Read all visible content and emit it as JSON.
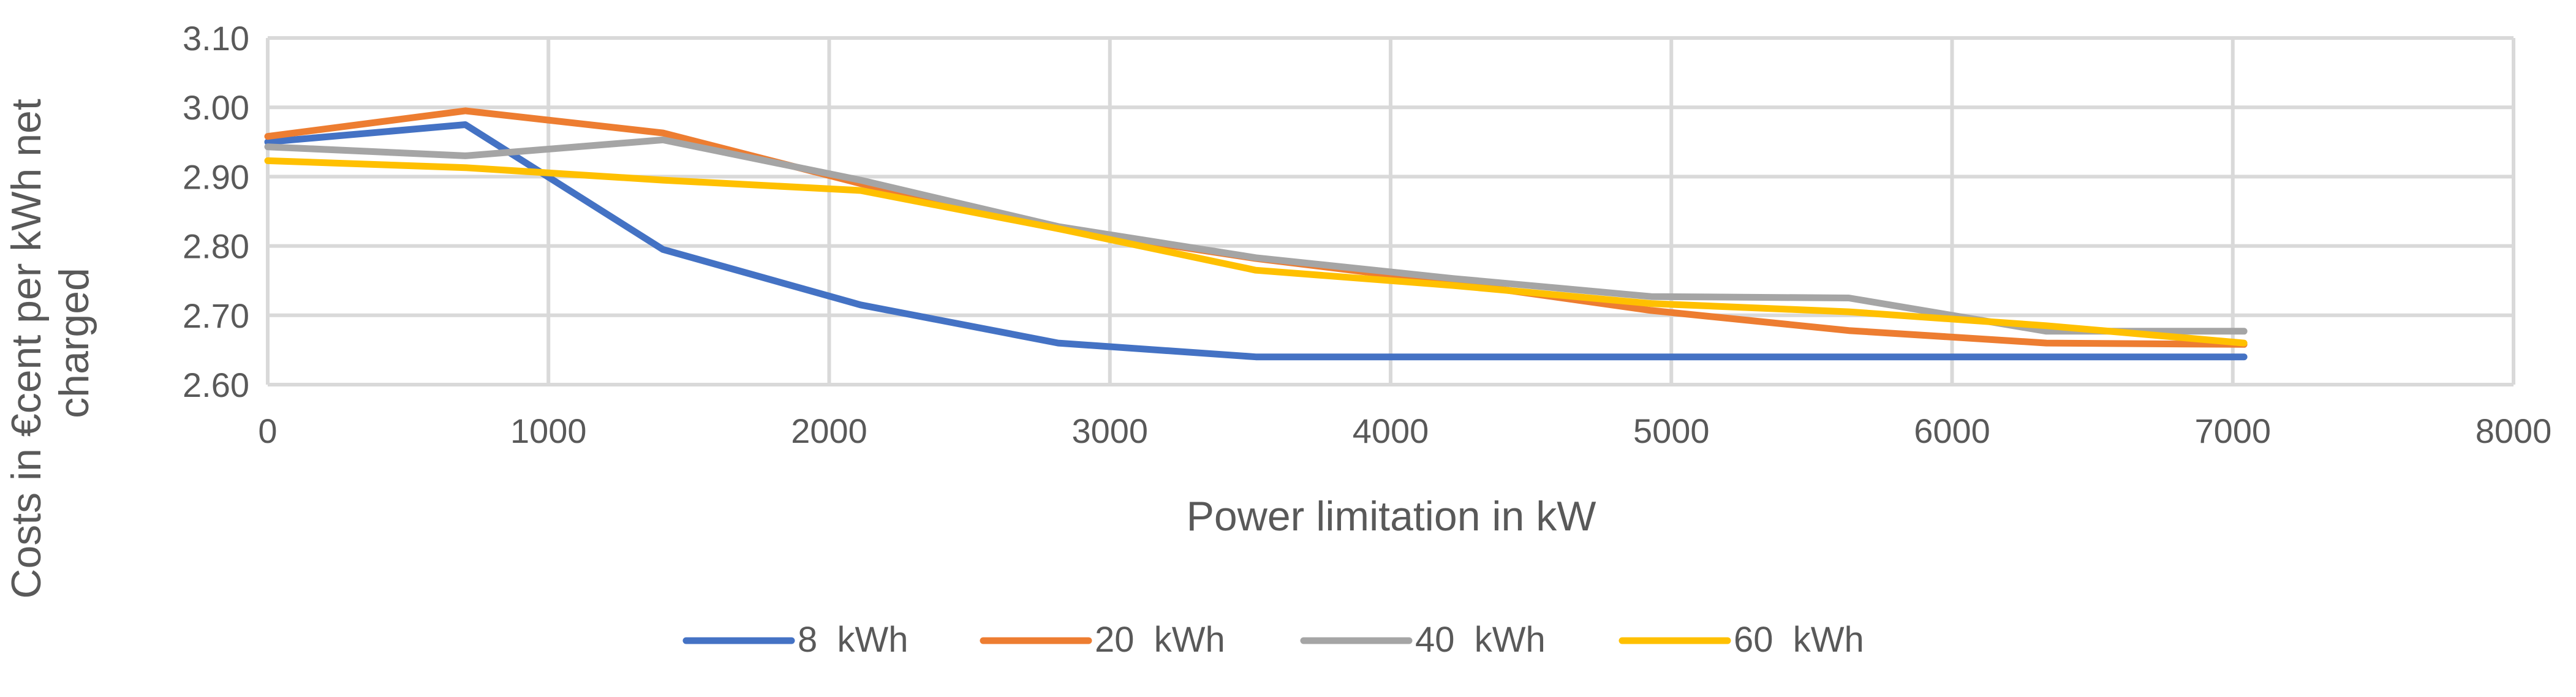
{
  "chart_data": {
    "type": "line",
    "title": "",
    "xlabel": "Power limitation in kW",
    "ylabel": "Costs in €cent per kWh net charged",
    "ylabel_lines": [
      "Costs in €cent per kWh net",
      "charged"
    ],
    "xlim": [
      0,
      8000
    ],
    "ylim": [
      2.6,
      3.1
    ],
    "xticks": [
      0,
      1000,
      2000,
      3000,
      4000,
      5000,
      6000,
      7000,
      8000
    ],
    "xtick_labels": [
      "0",
      "1000",
      "2000",
      "3000",
      "4000",
      "5000",
      "6000",
      "7000",
      "8000"
    ],
    "yticks": [
      2.6,
      2.7,
      2.8,
      2.9,
      3.0,
      3.1
    ],
    "ytick_labels": [
      "2.60",
      "2.70",
      "2.80",
      "2.90",
      "3.00",
      "3.10"
    ],
    "grid": true,
    "legend_position": "bottom",
    "x": [
      0,
      704,
      1408,
      2112,
      2816,
      3520,
      4224,
      4928,
      5632,
      6336,
      7040
    ],
    "series": [
      {
        "name": "8  kWh",
        "color": "#4472c4",
        "values": [
          2.95,
          2.975,
          2.795,
          2.715,
          2.66,
          2.64,
          2.64,
          2.64,
          2.64,
          2.64,
          2.64
        ]
      },
      {
        "name": "20  kWh",
        "color": "#ed7d31",
        "values": [
          2.958,
          2.995,
          2.963,
          2.89,
          2.825,
          2.782,
          2.747,
          2.707,
          2.678,
          2.66,
          2.658
        ]
      },
      {
        "name": "40  kWh",
        "color": "#a5a5a5",
        "values": [
          2.943,
          2.93,
          2.953,
          2.895,
          2.828,
          2.783,
          2.753,
          2.727,
          2.725,
          2.677,
          2.677
        ]
      },
      {
        "name": "60  kWh",
        "color": "#ffc000",
        "values": [
          2.923,
          2.913,
          2.895,
          2.88,
          2.825,
          2.765,
          2.743,
          2.717,
          2.705,
          2.685,
          2.66
        ]
      }
    ]
  }
}
